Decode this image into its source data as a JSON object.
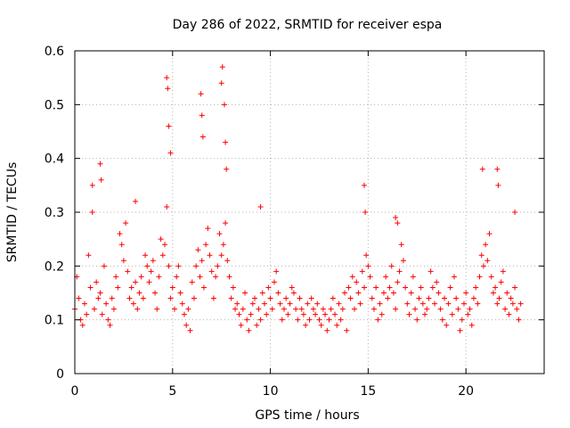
{
  "chart_data": {
    "type": "scatter",
    "title": "Day 286 of 2022, SRMTID for receiver espa",
    "xlabel": "GPS time / hours",
    "ylabel": "SRMTID / TECUs",
    "xlim": [
      0,
      24
    ],
    "ylim": [
      0,
      0.6
    ],
    "xticks": [
      0,
      5,
      10,
      15,
      20
    ],
    "yticks": [
      0,
      0.1,
      0.2,
      0.3,
      0.4,
      0.5,
      0.6
    ],
    "xtick_labels": [
      "0",
      "5",
      "10",
      "15",
      "20"
    ],
    "ytick_labels": [
      "0",
      "0.1",
      "0.2",
      "0.3",
      "0.4",
      "0.5",
      "0.6"
    ],
    "grid": true,
    "marker": "+",
    "color": "#ff0000",
    "series": [
      {
        "name": "SRMTID",
        "x": [
          0.0,
          0.1,
          0.2,
          0.3,
          0.4,
          0.5,
          0.6,
          0.7,
          0.8,
          0.9,
          1.0,
          1.1,
          1.2,
          1.3,
          1.4,
          1.5,
          1.6,
          1.7,
          1.8,
          1.9,
          2.0,
          2.1,
          2.2,
          2.3,
          2.4,
          2.5,
          2.6,
          2.7,
          2.8,
          2.9,
          3.0,
          3.1,
          3.2,
          3.3,
          3.4,
          3.5,
          3.6,
          3.7,
          3.8,
          3.9,
          4.0,
          4.1,
          4.2,
          4.3,
          4.4,
          4.5,
          4.6,
          4.7,
          4.8,
          4.9,
          5.0,
          5.1,
          5.2,
          5.3,
          5.4,
          5.5,
          5.6,
          5.7,
          5.8,
          5.9,
          6.0,
          6.1,
          6.2,
          6.3,
          6.4,
          6.5,
          6.6,
          6.7,
          6.8,
          6.9,
          7.0,
          7.1,
          7.2,
          7.3,
          7.4,
          7.5,
          7.6,
          7.7,
          7.8,
          7.9,
          8.0,
          8.1,
          8.2,
          8.3,
          8.4,
          8.5,
          8.6,
          8.7,
          8.8,
          8.9,
          9.0,
          9.1,
          9.2,
          9.3,
          9.4,
          9.5,
          9.6,
          9.7,
          9.8,
          9.9,
          10.0,
          10.1,
          10.2,
          10.3,
          10.4,
          10.5,
          10.6,
          10.7,
          10.8,
          10.9,
          11.0,
          11.1,
          11.2,
          11.3,
          11.4,
          11.5,
          11.6,
          11.7,
          11.8,
          11.9,
          12.0,
          12.1,
          12.2,
          12.3,
          12.4,
          12.5,
          12.6,
          12.7,
          12.8,
          12.9,
          13.0,
          13.1,
          13.2,
          13.3,
          13.4,
          13.5,
          13.6,
          13.7,
          13.8,
          13.9,
          14.0,
          14.1,
          14.2,
          14.3,
          14.4,
          14.5,
          14.6,
          14.7,
          14.8,
          14.9,
          15.0,
          15.1,
          15.2,
          15.3,
          15.4,
          15.5,
          15.6,
          15.7,
          15.8,
          15.9,
          16.0,
          16.1,
          16.2,
          16.3,
          16.4,
          16.5,
          16.6,
          16.7,
          16.8,
          16.9,
          17.0,
          17.1,
          17.2,
          17.3,
          17.4,
          17.5,
          17.6,
          17.7,
          17.8,
          17.9,
          18.0,
          18.1,
          18.2,
          18.3,
          18.4,
          18.5,
          18.6,
          18.7,
          18.8,
          18.9,
          19.0,
          19.1,
          19.2,
          19.3,
          19.4,
          19.5,
          19.6,
          19.7,
          19.8,
          19.9,
          20.0,
          20.1,
          20.2,
          20.3,
          20.4,
          20.5,
          20.6,
          20.7,
          20.8,
          20.9,
          21.0,
          21.1,
          21.2,
          21.3,
          21.4,
          21.5,
          21.6,
          21.7,
          21.8,
          21.9,
          22.0,
          22.1,
          22.2,
          22.3,
          22.4,
          22.5,
          22.6,
          22.7,
          22.8,
          0.9,
          1.3,
          1.35,
          3.1,
          4.7,
          4.75,
          4.8,
          4.9,
          6.45,
          6.5,
          6.55,
          7.5,
          7.55,
          7.65,
          7.7,
          7.75,
          9.5,
          14.8,
          14.85,
          16.4,
          16.5,
          20.85,
          21.6,
          21.65,
          22.5
        ],
        "y": [
          0.12,
          0.18,
          0.14,
          0.1,
          0.09,
          0.13,
          0.11,
          0.22,
          0.16,
          0.3,
          0.12,
          0.17,
          0.14,
          0.15,
          0.11,
          0.2,
          0.13,
          0.1,
          0.09,
          0.14,
          0.12,
          0.18,
          0.16,
          0.26,
          0.24,
          0.21,
          0.28,
          0.19,
          0.14,
          0.16,
          0.13,
          0.17,
          0.12,
          0.15,
          0.18,
          0.14,
          0.22,
          0.2,
          0.17,
          0.19,
          0.21,
          0.15,
          0.12,
          0.18,
          0.25,
          0.22,
          0.24,
          0.31,
          0.2,
          0.14,
          0.16,
          0.12,
          0.18,
          0.2,
          0.15,
          0.13,
          0.11,
          0.09,
          0.12,
          0.08,
          0.17,
          0.14,
          0.2,
          0.23,
          0.18,
          0.21,
          0.16,
          0.24,
          0.27,
          0.22,
          0.19,
          0.14,
          0.18,
          0.2,
          0.26,
          0.22,
          0.24,
          0.28,
          0.21,
          0.18,
          0.14,
          0.16,
          0.12,
          0.13,
          0.11,
          0.09,
          0.12,
          0.15,
          0.1,
          0.08,
          0.11,
          0.13,
          0.14,
          0.09,
          0.12,
          0.1,
          0.15,
          0.13,
          0.11,
          0.16,
          0.14,
          0.12,
          0.17,
          0.19,
          0.15,
          0.13,
          0.1,
          0.12,
          0.14,
          0.11,
          0.13,
          0.16,
          0.15,
          0.12,
          0.1,
          0.14,
          0.12,
          0.11,
          0.09,
          0.13,
          0.1,
          0.14,
          0.12,
          0.11,
          0.13,
          0.1,
          0.09,
          0.12,
          0.11,
          0.08,
          0.1,
          0.12,
          0.14,
          0.11,
          0.09,
          0.13,
          0.1,
          0.12,
          0.15,
          0.08,
          0.16,
          0.14,
          0.18,
          0.12,
          0.17,
          0.15,
          0.13,
          0.19,
          0.16,
          0.22,
          0.2,
          0.18,
          0.14,
          0.12,
          0.16,
          0.1,
          0.13,
          0.11,
          0.15,
          0.18,
          0.14,
          0.16,
          0.2,
          0.15,
          0.12,
          0.17,
          0.19,
          0.24,
          0.21,
          0.16,
          0.13,
          0.11,
          0.15,
          0.18,
          0.12,
          0.1,
          0.14,
          0.16,
          0.13,
          0.11,
          0.12,
          0.14,
          0.19,
          0.16,
          0.13,
          0.17,
          0.15,
          0.12,
          0.1,
          0.14,
          0.09,
          0.13,
          0.16,
          0.11,
          0.18,
          0.14,
          0.12,
          0.08,
          0.1,
          0.13,
          0.15,
          0.11,
          0.12,
          0.09,
          0.14,
          0.16,
          0.13,
          0.18,
          0.22,
          0.2,
          0.24,
          0.21,
          0.26,
          0.18,
          0.15,
          0.16,
          0.13,
          0.14,
          0.17,
          0.19,
          0.12,
          0.15,
          0.11,
          0.14,
          0.13,
          0.16,
          0.12,
          0.1,
          0.13,
          0.35,
          0.39,
          0.36,
          0.32,
          0.55,
          0.53,
          0.46,
          0.41,
          0.52,
          0.48,
          0.44,
          0.54,
          0.57,
          0.5,
          0.43,
          0.38,
          0.31,
          0.35,
          0.3,
          0.29,
          0.28,
          0.38,
          0.38,
          0.35,
          0.3
        ]
      }
    ]
  }
}
